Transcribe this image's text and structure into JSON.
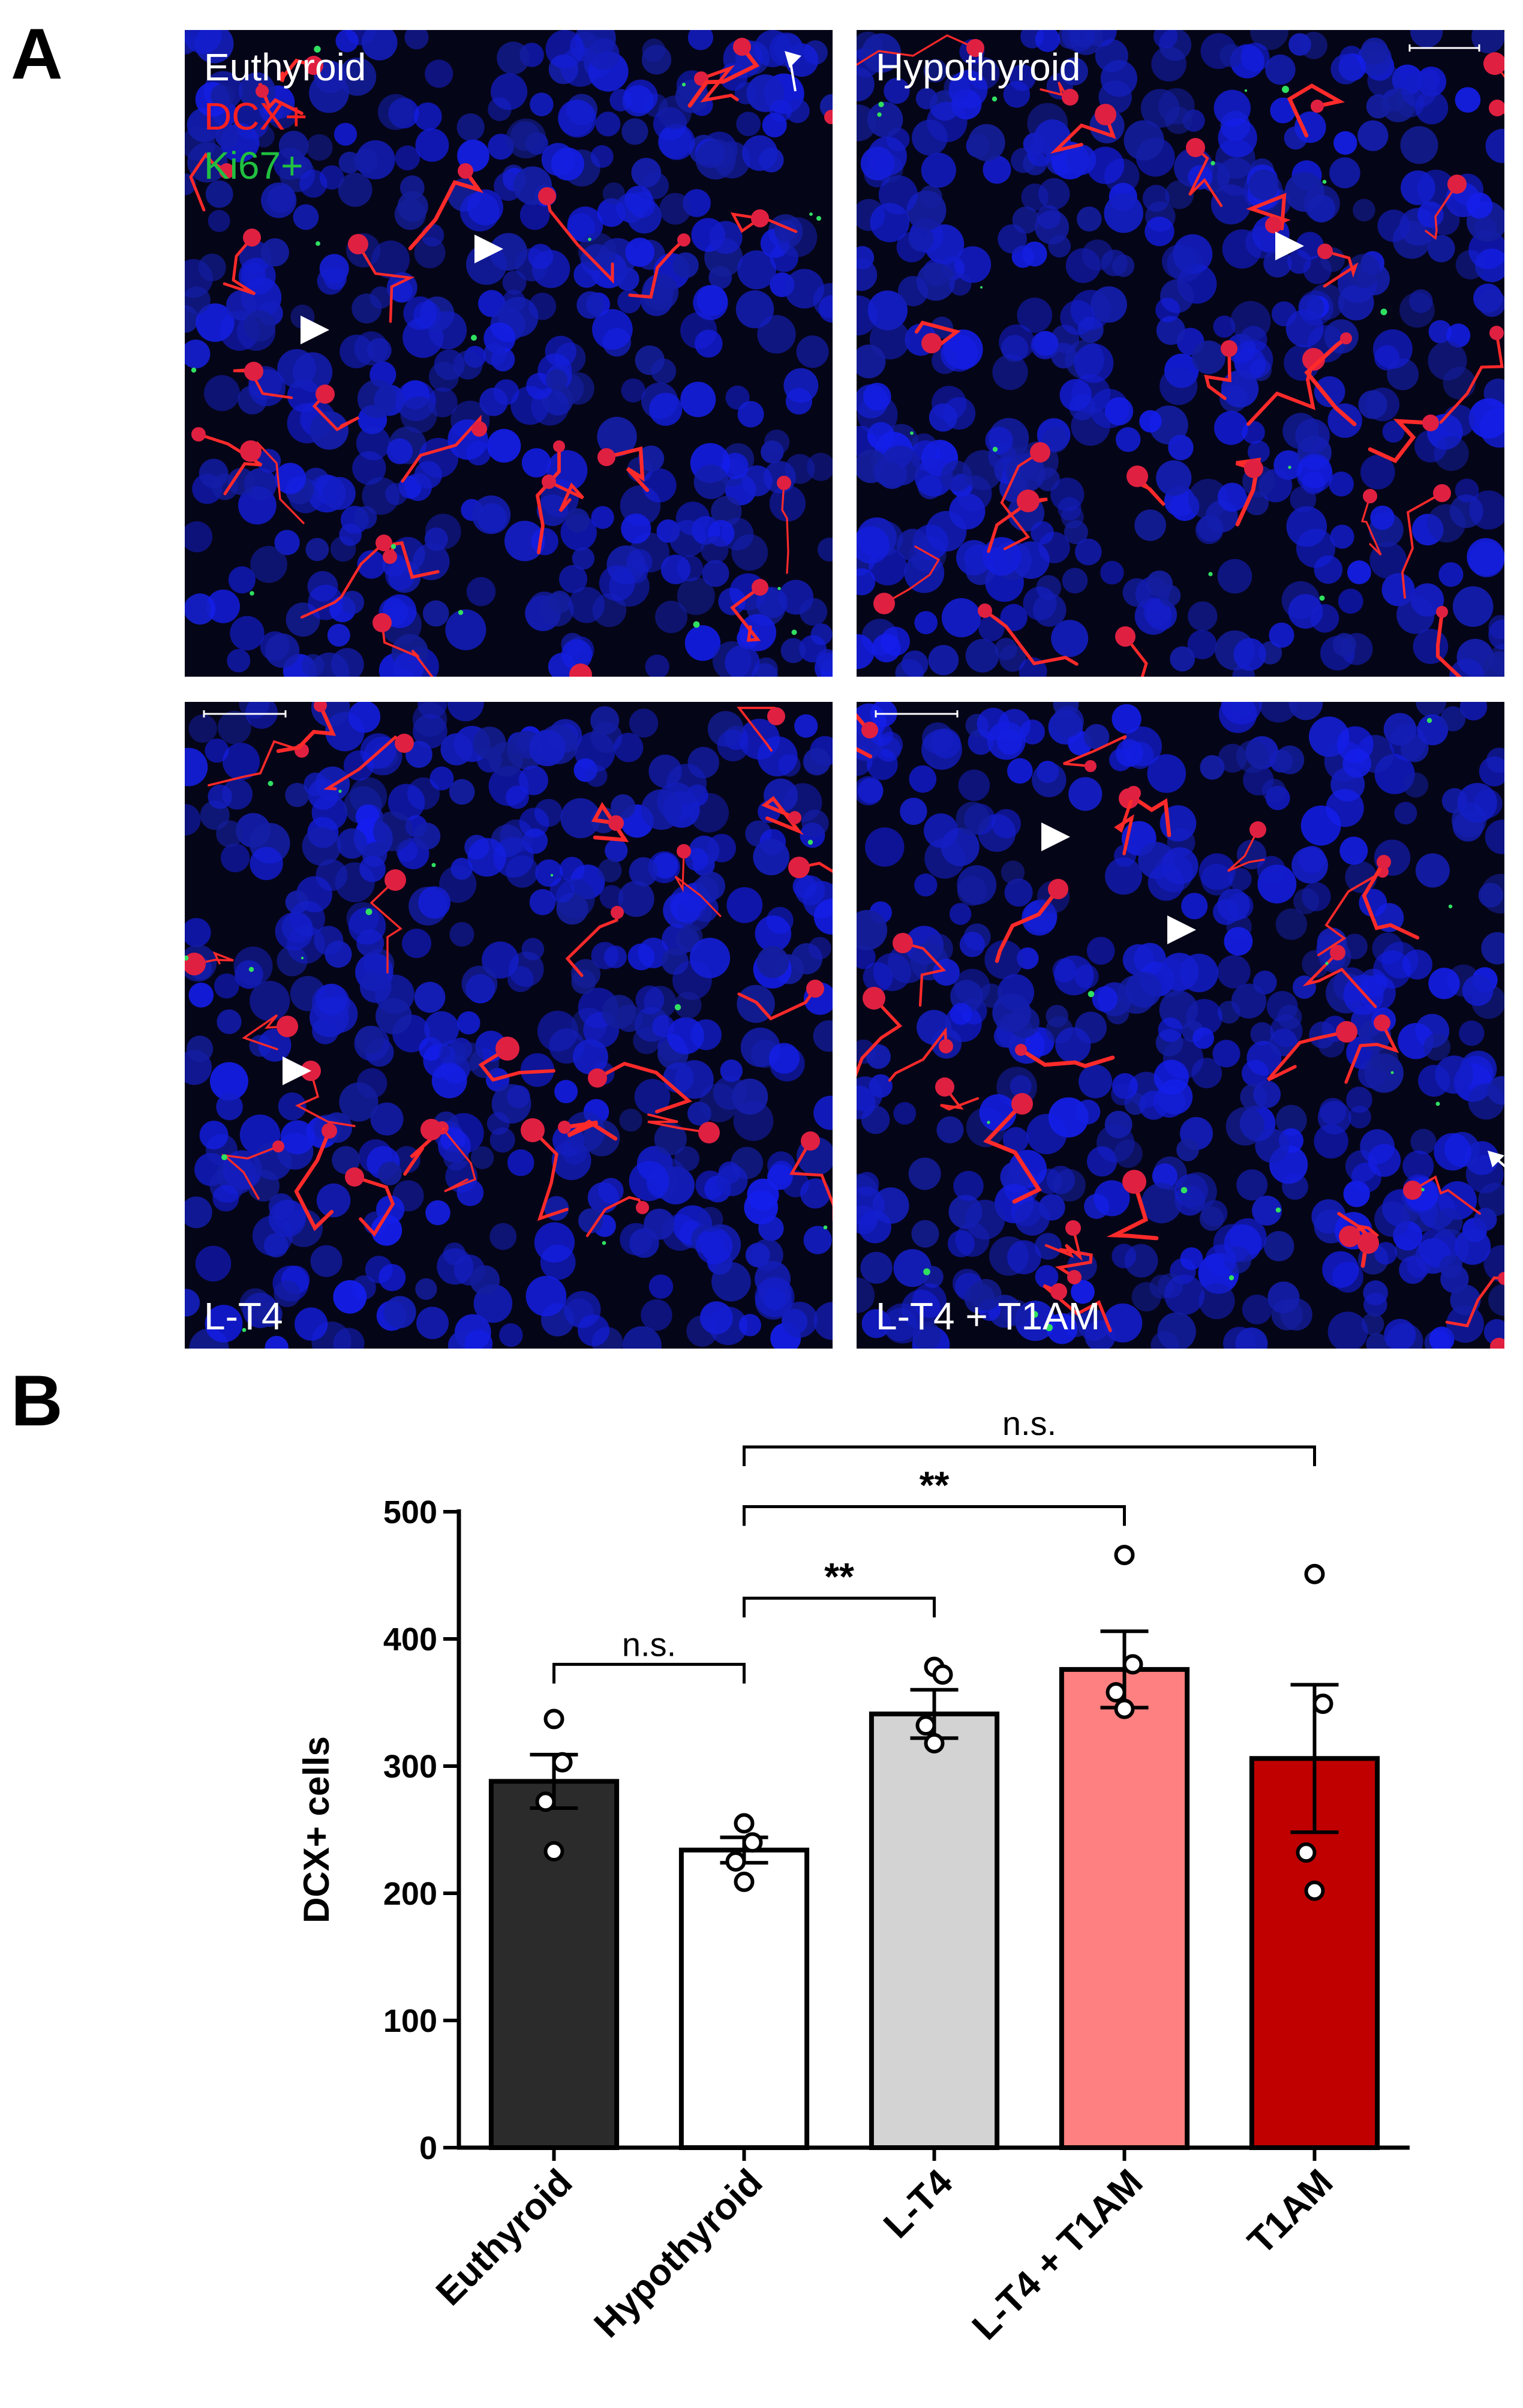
{
  "panels": {
    "a": "A",
    "b": "B"
  },
  "images": [
    {
      "caption": "Euthyroid",
      "legend": [
        {
          "text": "Euthyroid",
          "color": "#ffffff"
        },
        {
          "text": "DCX+",
          "color": "#ff2020"
        },
        {
          "text": "Ki67+",
          "color": "#20c040"
        }
      ]
    },
    {
      "caption": "Hypothyroid",
      "legend": []
    },
    {
      "caption": "L-T4",
      "legend": []
    },
    {
      "caption": "L-T4 + T1AM",
      "legend": []
    }
  ],
  "chart_data": {
    "type": "bar",
    "categories": [
      "Euthyroid",
      "Hypothyroid",
      "L-T4",
      "L-T4 + T1AM",
      "T1AM"
    ],
    "values": [
      288,
      234,
      341,
      376,
      306
    ],
    "sem": [
      21,
      10,
      19,
      30,
      58
    ],
    "points": [
      [
        337,
        303,
        272,
        233
      ],
      [
        255,
        240,
        225,
        209
      ],
      [
        378,
        372,
        332,
        318
      ],
      [
        466,
        380,
        358,
        345
      ],
      [
        451,
        349,
        232,
        202
      ]
    ],
    "colors": [
      "#2b2b2b",
      "#ffffff",
      "#d3d3d3",
      "#ff8080",
      "#c00000"
    ],
    "ylabel": "DCX+ cells",
    "ylim": [
      0,
      500
    ],
    "yticks": [
      0,
      100,
      200,
      300,
      400,
      500
    ],
    "significance": [
      {
        "from": 0,
        "to": 1,
        "label": "n.s."
      },
      {
        "from": 1,
        "to": 2,
        "label": "**"
      },
      {
        "from": 1,
        "to": 3,
        "label": "**"
      },
      {
        "from": 1,
        "to": 4,
        "label": "n.s."
      }
    ]
  }
}
